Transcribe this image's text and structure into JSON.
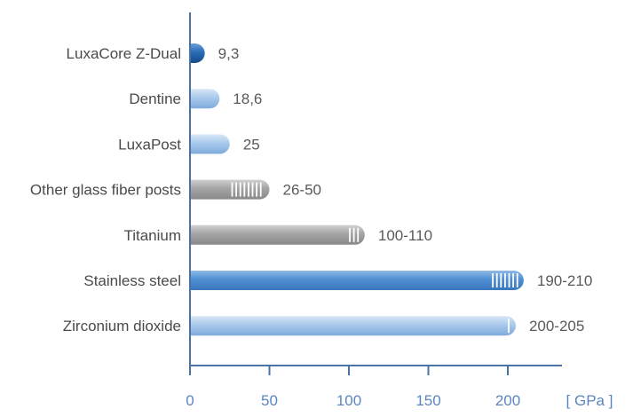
{
  "chart_data": {
    "type": "bar",
    "orientation": "horizontal",
    "categories": [
      "LuxaCore Z-Dual",
      "Dentine",
      "LuxaPost",
      "Other glass fiber posts",
      "Titanium",
      "Stainless steel",
      "Zirconium dioxide"
    ],
    "values": [
      {
        "min": 9.3,
        "max": 9.3
      },
      {
        "min": 18.6,
        "max": 18.6
      },
      {
        "min": 25,
        "max": 25
      },
      {
        "min": 26,
        "max": 50
      },
      {
        "min": 100,
        "max": 110
      },
      {
        "min": 190,
        "max": 210
      },
      {
        "min": 200,
        "max": 205
      }
    ],
    "value_labels": [
      "9,3",
      "18,6",
      "25",
      "26-50",
      "100-110",
      "190-210",
      "200-205"
    ],
    "bar_styles": [
      "dark-blue",
      "light-blue",
      "light-blue",
      "gray",
      "gray",
      "blue",
      "light-blue"
    ],
    "xticks": [
      "0",
      "50",
      "100",
      "150",
      "200"
    ],
    "xtick_values": [
      0,
      50,
      100,
      150,
      200
    ],
    "xlim": [
      0,
      230
    ],
    "unit_label": "[ GPa ]",
    "title": "",
    "xlabel": "",
    "ylabel": "",
    "grid": false,
    "colors": {
      "axis": "#4a72a6",
      "tick_label": "#5b86c0",
      "category_label": "#4a4a4a",
      "value_label": "#5a5a5a",
      "dark_blue": "#1f5fa6",
      "blue": "#4f8ed2",
      "light_blue": "#9cc0e8",
      "gray": "#a0a0a0"
    }
  }
}
